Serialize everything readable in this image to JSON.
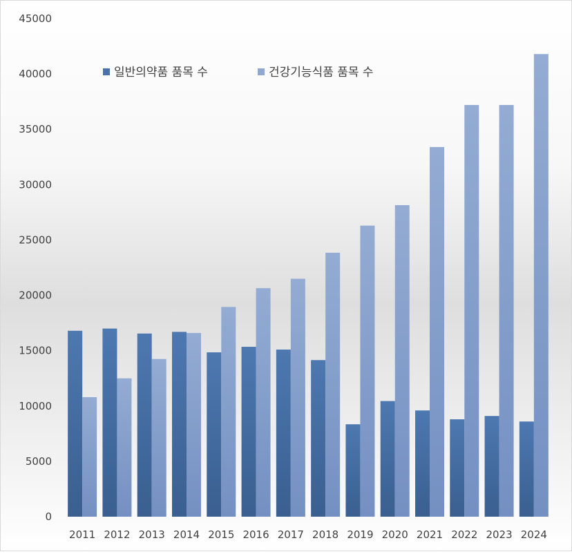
{
  "chart_data": {
    "type": "bar",
    "categories": [
      "2011",
      "2012",
      "2013",
      "2014",
      "2015",
      "2016",
      "2017",
      "2018",
      "2019",
      "2020",
      "2021",
      "2022",
      "2023",
      "2024"
    ],
    "series": [
      {
        "name": "일반의약품 품목 수",
        "color": "#4a72a8",
        "values": [
          16800,
          17000,
          16550,
          16700,
          14850,
          15350,
          15100,
          14150,
          8350,
          10450,
          9600,
          8800,
          9100,
          8600
        ]
      },
      {
        "name": "건강기능식품 품목 수",
        "color": "#8fa8d0",
        "values": [
          10800,
          12500,
          14250,
          16600,
          18950,
          20650,
          21500,
          23850,
          26300,
          28150,
          33400,
          37200,
          37200,
          41800
        ]
      }
    ],
    "ylim": [
      0,
      45000
    ],
    "yticks": [
      "0",
      "5000",
      "10000",
      "15000",
      "20000",
      "25000",
      "30000",
      "35000",
      "40000",
      "45000"
    ],
    "grid": false,
    "legend_position": "top"
  }
}
